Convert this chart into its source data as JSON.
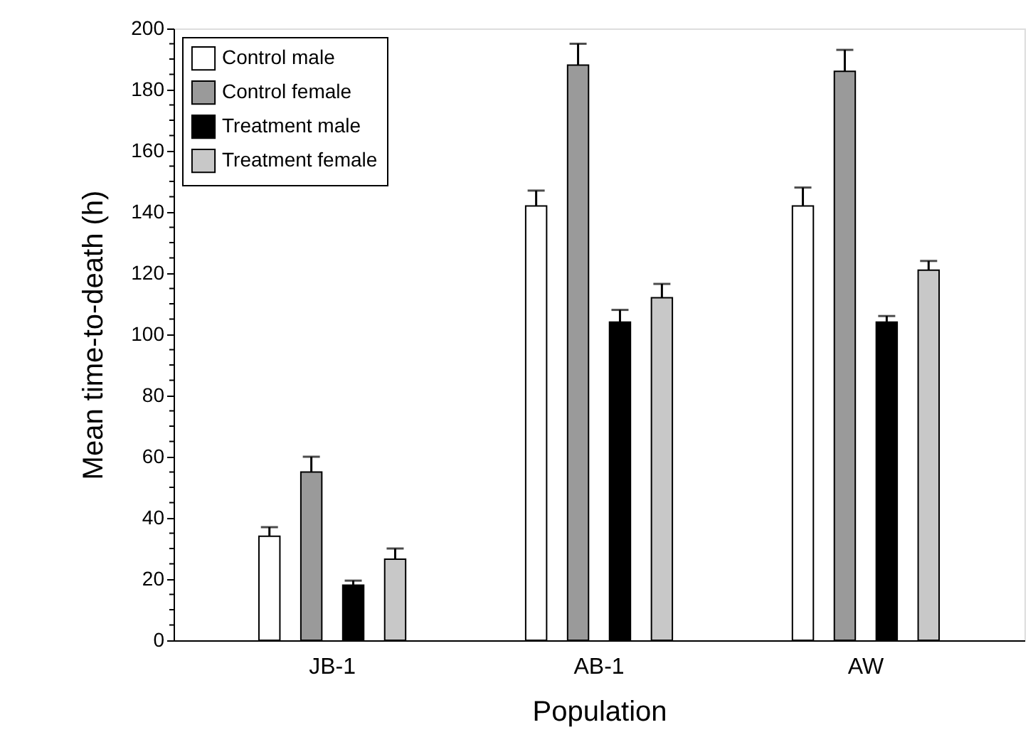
{
  "chart_data": {
    "type": "bar",
    "xlabel": "Population",
    "ylabel": "Mean time-to-death (h)",
    "categories": [
      "JB-1",
      "AB-1",
      "AW"
    ],
    "series": [
      {
        "name": "Control male",
        "color": "#ffffff",
        "values": [
          34,
          142,
          142
        ],
        "errors": [
          [
            34,
            37
          ],
          [
            142,
            147
          ],
          [
            142,
            148
          ]
        ]
      },
      {
        "name": "Control female",
        "color": "#9a9a9a",
        "values": [
          55,
          188,
          186
        ],
        "errors": [
          [
            55,
            60
          ],
          [
            188,
            195
          ],
          [
            186,
            193
          ]
        ]
      },
      {
        "name": "Treatment male",
        "color": "#000000",
        "values": [
          18,
          104,
          104
        ],
        "errors": [
          [
            18,
            19.5
          ],
          [
            104,
            108
          ],
          [
            104,
            106
          ]
        ]
      },
      {
        "name": "Treatment female",
        "color": "#c8c8c8",
        "values": [
          26.5,
          112,
          121
        ],
        "errors": [
          [
            26.5,
            30
          ],
          [
            112,
            116.5
          ],
          [
            121,
            124
          ]
        ]
      }
    ],
    "ylim": [
      0,
      200
    ],
    "yticks": [
      0,
      {
        "value": 5,
        "label": null
      },
      {
        "value": 10,
        "label": null
      },
      {
        "value": 15,
        "label": null
      },
      20,
      {
        "value": 25,
        "label": null
      },
      {
        "value": 30,
        "label": null
      },
      {
        "value": 35,
        "label": null
      },
      40,
      {
        "value": 45,
        "label": null
      },
      {
        "value": 50,
        "label": null
      },
      {
        "value": 55,
        "label": null
      },
      60,
      {
        "value": 65,
        "label": null
      },
      {
        "value": 70,
        "label": null
      },
      {
        "value": 75,
        "label": null
      },
      80,
      {
        "value": 85,
        "label": null
      },
      {
        "value": 90,
        "label": null
      },
      {
        "value": 95,
        "label": null
      },
      100,
      {
        "value": 105,
        "label": null
      },
      {
        "value": 110,
        "label": null
      },
      {
        "value": 115,
        "label": null
      },
      120,
      {
        "value": 125,
        "label": null
      },
      {
        "value": 130,
        "label": null
      },
      {
        "value": 135,
        "label": null
      },
      140,
      {
        "value": 145,
        "label": null
      },
      {
        "value": 150,
        "label": null
      },
      {
        "value": 155,
        "label": null
      },
      160,
      {
        "value": 165,
        "label": null
      },
      {
        "value": 170,
        "label": null
      },
      {
        "value": 175,
        "label": null
      },
      180,
      {
        "value": 185,
        "label": null
      },
      {
        "value": 190,
        "label": null
      },
      {
        "value": 195,
        "label": null
      },
      200
    ],
    "grid": false,
    "legend": "top left"
  }
}
